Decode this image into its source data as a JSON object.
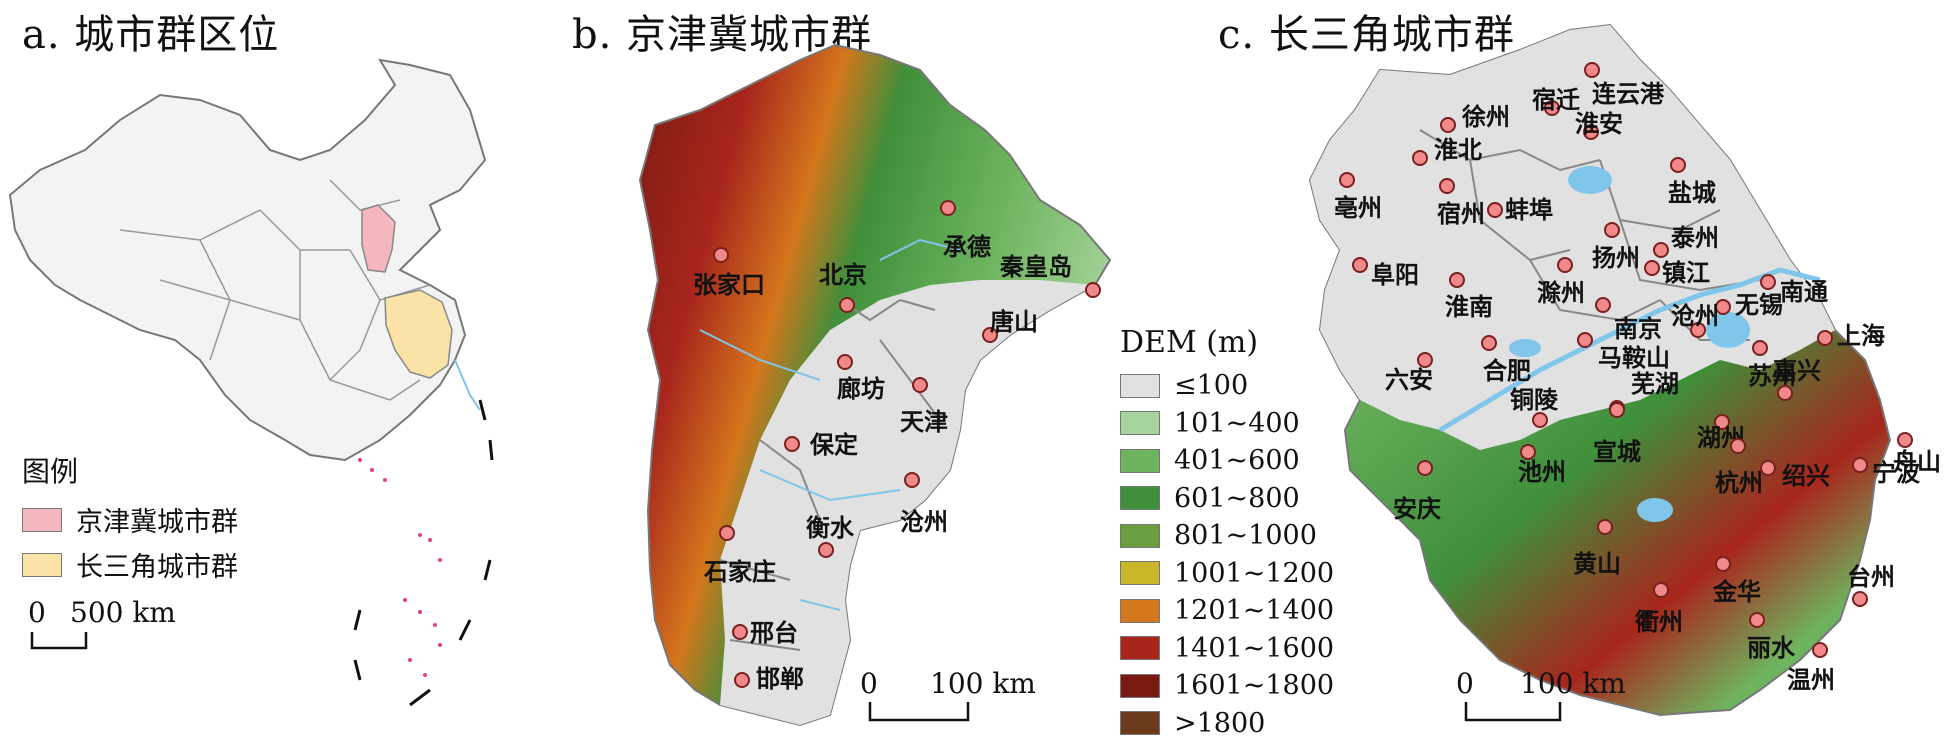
{
  "panels": {
    "a": {
      "title": "a. 城市群区位"
    },
    "b": {
      "title": "b. 京津冀城市群"
    },
    "c": {
      "title": "c. 长三角城市群"
    }
  },
  "legend_a": {
    "title": "图例",
    "items": [
      {
        "label": "京津冀城市群",
        "color": "#f4b7bd"
      },
      {
        "label": "长三角城市群",
        "color": "#fbe2a6"
      }
    ],
    "scale": {
      "zero": "0",
      "label": "500 km"
    }
  },
  "legend_dem": {
    "title": "DEM (m)",
    "items": [
      {
        "label": "≤100",
        "color": "#e1e1e1"
      },
      {
        "label": "101~400",
        "color": "#a7d49c"
      },
      {
        "label": "401~600",
        "color": "#6eb45f"
      },
      {
        "label": "601~800",
        "color": "#3f8f3b"
      },
      {
        "label": "801~1000",
        "color": "#6a9e3e"
      },
      {
        "label": "1001~1200",
        "color": "#c9b62a"
      },
      {
        "label": "1201~1400",
        "color": "#d4761c"
      },
      {
        "label": "1401~1600",
        "color": "#a8251c"
      },
      {
        "label": "1601~1800",
        "color": "#7a1b12"
      },
      {
        "label": ">1800",
        "color": "#6b3a1a"
      }
    ]
  },
  "scale_b": {
    "zero": "0",
    "label": "100 km"
  },
  "scale_c": {
    "zero": "0",
    "label": "100 km"
  },
  "cities_b": [
    "张家口",
    "北京",
    "承德",
    "秦皇岛",
    "唐山",
    "廊坊",
    "天津",
    "保定",
    "沧州",
    "衡水",
    "石家庄",
    "邢台",
    "邯郸"
  ],
  "cities_c": [
    "连云港",
    "徐州",
    "宿迁",
    "淮安",
    "淮北",
    "亳州",
    "宿州",
    "盐城",
    "蚌埠",
    "扬州",
    "泰州",
    "阜阳",
    "滁州",
    "镇江",
    "南通",
    "淮南",
    "南京",
    "无锡",
    "上海",
    "合肥",
    "马鞍山",
    "沧州",
    "苏州",
    "六安",
    "铜陵",
    "芜湖",
    "宣城",
    "湖州",
    "嘉兴",
    "安庆",
    "池州",
    "杭州",
    "舟山",
    "绍兴",
    "宁波",
    "黄山",
    "金华",
    "衢州",
    "丽水",
    "台州",
    "温州"
  ],
  "colors": {
    "water": "#7fc6ea",
    "outline": "#888888",
    "dot_fill": "#f08a8a",
    "dot_stroke": "#7a1f1f"
  }
}
